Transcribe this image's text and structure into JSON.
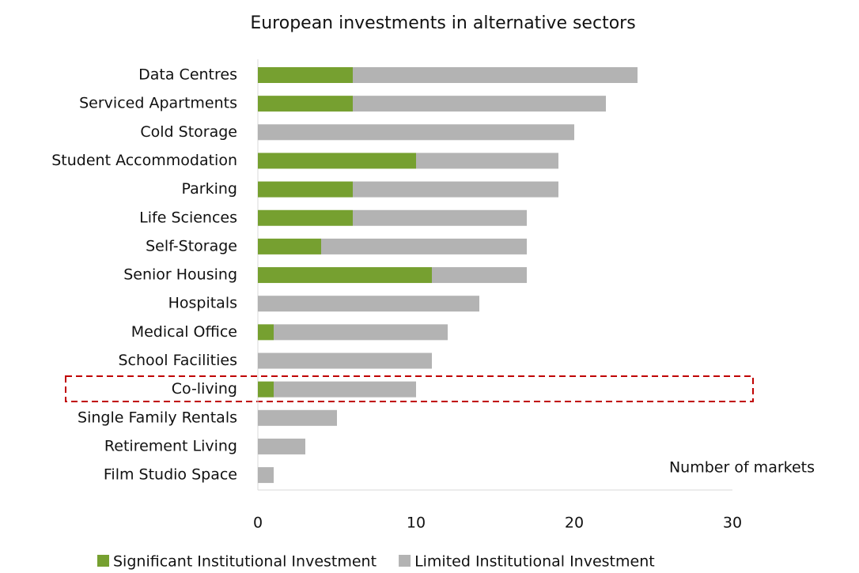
{
  "chart_data": {
    "type": "stacked_barh",
    "title": "European investments in alternative sectors",
    "x_label": "Number of markets",
    "categories": [
      "Data Centres",
      "Serviced Apartments",
      "Cold Storage",
      "Student Accommodation",
      "Parking",
      "Life Sciences",
      "Self-Storage",
      "Senior Housing",
      "Hospitals",
      "Medical Office",
      "School Facilities",
      "Co-living",
      "Single Family Rentals",
      "Retirement Living",
      "Film Studio Space"
    ],
    "series": [
      {
        "name": "Significant Institutional Investment",
        "color": "#76a030",
        "values": [
          6,
          6,
          0,
          10,
          6,
          6,
          4,
          11,
          0,
          1,
          0,
          1,
          0,
          0,
          0
        ]
      },
      {
        "name": "Limited Institutional Investment",
        "color": "#b3b3b3",
        "values": [
          18,
          16,
          20,
          9,
          13,
          11,
          13,
          6,
          14,
          11,
          11,
          9,
          5,
          3,
          1
        ]
      }
    ],
    "xlim": [
      0,
      30
    ],
    "xticks": [
      0,
      10,
      20,
      30
    ]
  }
}
